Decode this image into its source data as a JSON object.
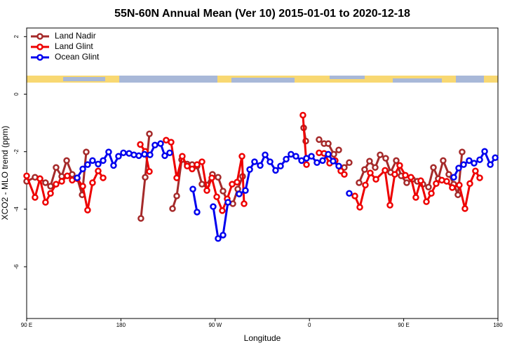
{
  "chart_data": {
    "type": "line",
    "title": "55N-60N Annual Mean (Ver 10)   2015-01-01 to 2020-12-18",
    "x_label": "Longitude",
    "y_label": "XCO2 - MLO trend (ppm)",
    "xlim": [
      90,
      540
    ],
    "ylim": [
      -7.8,
      2.3
    ],
    "xticks": [
      {
        "value": 90,
        "label": "90 E"
      },
      180,
      {
        "value": 270,
        "label": "90 W"
      },
      {
        "value": 360,
        "label": "0"
      },
      {
        "value": 450,
        "label": "90 E"
      },
      {
        "value": 540,
        "label": "180"
      }
    ],
    "yticks": [
      2,
      0,
      -2,
      -4,
      -6
    ],
    "legend": "upper left",
    "series": [
      {
        "name": "Land Nadir",
        "color": "#a52a2a",
        "x": [
          90,
          98,
          102.7,
          108,
          112.8,
          118.1,
          123.5,
          128.2,
          133.5,
          138.2,
          143,
          146.9,
          null,
          199.1,
          203.2,
          207.2,
          null,
          229.3,
          233.3,
          238,
          243.3,
          248,
          252.7,
          257.4,
          262.1,
          267.4,
          272.8,
          277.5,
          282.2,
          286.9,
          291.6,
          296.2,
          null,
          354.5,
          356.5,
          null,
          369.2,
          374,
          378,
          383.3,
          388,
          null,
          393.3,
          398,
          null,
          407.4,
          412.7,
          417.4,
          422.8,
          427.5,
          432.8,
          437.5,
          442.9,
          447.6,
          452.9,
          458.3,
          463,
          468.3,
          473.7,
          478.4,
          483,
          487.7,
          493.1,
          497.8,
          501.8,
          505.8
        ],
        "values": [
          -3.03,
          -2.89,
          -2.94,
          -3.08,
          -3.2,
          -2.55,
          -2.86,
          -2.31,
          -2.79,
          -2.91,
          -3.5,
          -2.01,
          null,
          -4.32,
          -2.89,
          -1.38,
          null,
          -3.98,
          -3.54,
          -2.28,
          -2.43,
          -2.45,
          -2.5,
          -3.13,
          -3.16,
          -2.79,
          -2.89,
          -3.37,
          -3.76,
          -3.81,
          -3.3,
          -2.86,
          null,
          -1.17,
          -1.63,
          null,
          -1.58,
          -1.72,
          -1.72,
          -2.09,
          -1.94,
          null,
          -2.55,
          -2.38,
          null,
          -3.08,
          -2.62,
          -2.33,
          -2.55,
          -2.11,
          -2.23,
          -2.72,
          -2.31,
          -2.84,
          -3.08,
          -2.96,
          -3.03,
          -3.13,
          -3.23,
          -2.55,
          -2.94,
          -2.31,
          -2.79,
          -3.13,
          -3.5,
          -2.01
        ]
      },
      {
        "name": "Land Glint",
        "color": "#ee0000",
        "x": [
          90,
          98,
          102.7,
          108,
          112.8,
          118.1,
          123.5,
          128.8,
          133.5,
          138.2,
          143.6,
          148.2,
          152.9,
          158.3,
          163,
          null,
          198.5,
          203.2,
          207.2,
          null,
          223.2,
          227.9,
          233.3,
          238.6,
          243.3,
          248,
          252.7,
          257.4,
          262.1,
          266.8,
          271.5,
          276.8,
          281.5,
          286.2,
          290.9,
          295.6,
          297.6,
          null,
          353.8,
          357.2,
          null,
          369.2,
          374,
          379.3,
          384.6,
          390,
          393.3,
          null,
          403.4,
          408.1,
          413.4,
          418.1,
          423.5,
          432.2,
          436.9,
          441.5,
          446.2,
          451.6,
          456.9,
          461.6,
          466.3,
          471.7,
          476.4,
          481,
          486.4,
          491.1,
          496.4,
          503.1,
          508.5,
          513.2,
          518.5,
          522.6
        ],
        "values": [
          -2.84,
          -3.59,
          -2.94,
          -3.76,
          -3.45,
          -3.13,
          -3.03,
          -2.84,
          -2.99,
          -2.94,
          -3.2,
          -4.03,
          -3.08,
          -2.67,
          -2.91,
          null,
          -1.75,
          -1.99,
          -2.69,
          null,
          -1.6,
          -1.67,
          -2.91,
          -2.16,
          -2.5,
          -2.6,
          -2.45,
          -2.35,
          -3.35,
          -2.91,
          -3.57,
          -4.05,
          -3.64,
          -3.13,
          -3.06,
          -2.16,
          -3.81,
          null,
          -0.73,
          -2.45,
          null,
          -2.04,
          -2.06,
          -2.4,
          -2.31,
          -2.67,
          -2.79,
          null,
          -3.54,
          -3.93,
          -3.16,
          -2.74,
          -2.96,
          -2.65,
          -3.86,
          -2.79,
          -2.48,
          -2.82,
          -2.89,
          -3.59,
          -3.01,
          -3.74,
          -3.45,
          -3.11,
          -2.99,
          -3.03,
          -3.25,
          -3.16,
          -3.98,
          -3.11,
          -2.67,
          -2.91
        ]
      },
      {
        "name": "Ocean Glint",
        "color": "#0000ee",
        "x": [
          138.2,
          143.6,
          148.2,
          152.9,
          158.3,
          163,
          168.3,
          173,
          177.7,
          182.4,
          187.8,
          192.4,
          197.1,
          202.5,
          207.8,
          212.5,
          217.9,
          221.9,
          226.6,
          null,
          248.7,
          252.7,
          null,
          268.1,
          272.8,
          277.5,
          282.2,
          null,
          292.9,
          298.9,
          303,
          307.6,
          313,
          317.7,
          322.4,
          327.7,
          332.4,
          337.8,
          342.4,
          347.1,
          352.5,
          357.2,
          361.9,
          367.2,
          372.6,
          378,
          382.6,
          388,
          null,
          398,
          null,
          497.8,
          502.5,
          507.2,
          512.5,
          517.2,
          522.6,
          527.3,
          532.7,
          537.4
        ],
        "values": [
          -2.91,
          -2.6,
          -2.45,
          -2.31,
          -2.43,
          -2.31,
          -2.01,
          -2.48,
          -2.16,
          -2.04,
          -2.06,
          -2.11,
          -2.14,
          -2.09,
          -2.11,
          -1.77,
          -1.72,
          -2.14,
          -2.04,
          null,
          -3.3,
          -4.1,
          null,
          -3.91,
          -5.02,
          -4.9,
          -3.76,
          null,
          -3.47,
          -3.35,
          -2.62,
          -2.35,
          -2.48,
          -2.11,
          -2.35,
          -2.65,
          -2.5,
          -2.26,
          -2.09,
          -2.16,
          -2.31,
          -2.23,
          -2.16,
          -2.38,
          -2.31,
          -2.09,
          -2.33,
          -2.5,
          null,
          -3.45,
          null,
          -2.89,
          -2.57,
          -2.45,
          -2.31,
          -2.4,
          -2.28,
          -1.99,
          -2.45,
          -2.21
        ]
      }
    ]
  }
}
